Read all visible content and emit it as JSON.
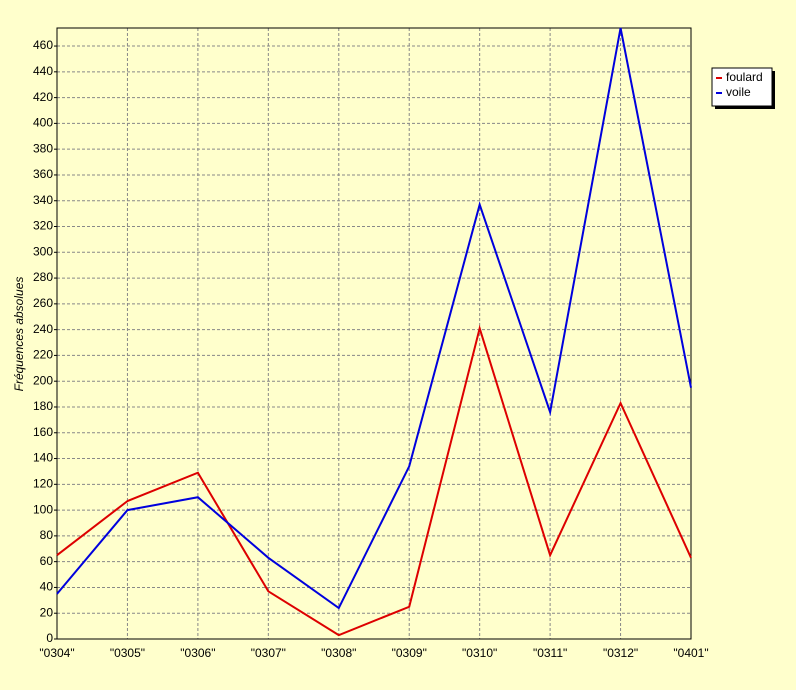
{
  "chart_data": {
    "type": "line",
    "y_label": "Fréquences absolues",
    "categories": [
      "\"0304\"",
      "\"0305\"",
      "\"0306\"",
      "\"0307\"",
      "\"0308\"",
      "\"0309\"",
      "\"0310\"",
      "\"0311\"",
      "\"0312\"",
      "\"0401\""
    ],
    "series": [
      {
        "name": "foulard",
        "color": "#dd0000",
        "values": [
          65,
          107,
          129,
          37,
          3,
          25,
          241,
          65,
          183,
          63
        ]
      },
      {
        "name": "voile",
        "color": "#0000dd",
        "values": [
          35,
          100,
          110,
          63,
          24,
          134,
          337,
          176,
          474,
          195
        ]
      }
    ],
    "ylim": [
      0,
      474
    ],
    "yticks": [
      0,
      20,
      40,
      60,
      80,
      100,
      120,
      140,
      160,
      180,
      200,
      220,
      240,
      260,
      280,
      300,
      320,
      340,
      360,
      380,
      400,
      420,
      440,
      460
    ],
    "grid": true,
    "legend": "top-right"
  }
}
